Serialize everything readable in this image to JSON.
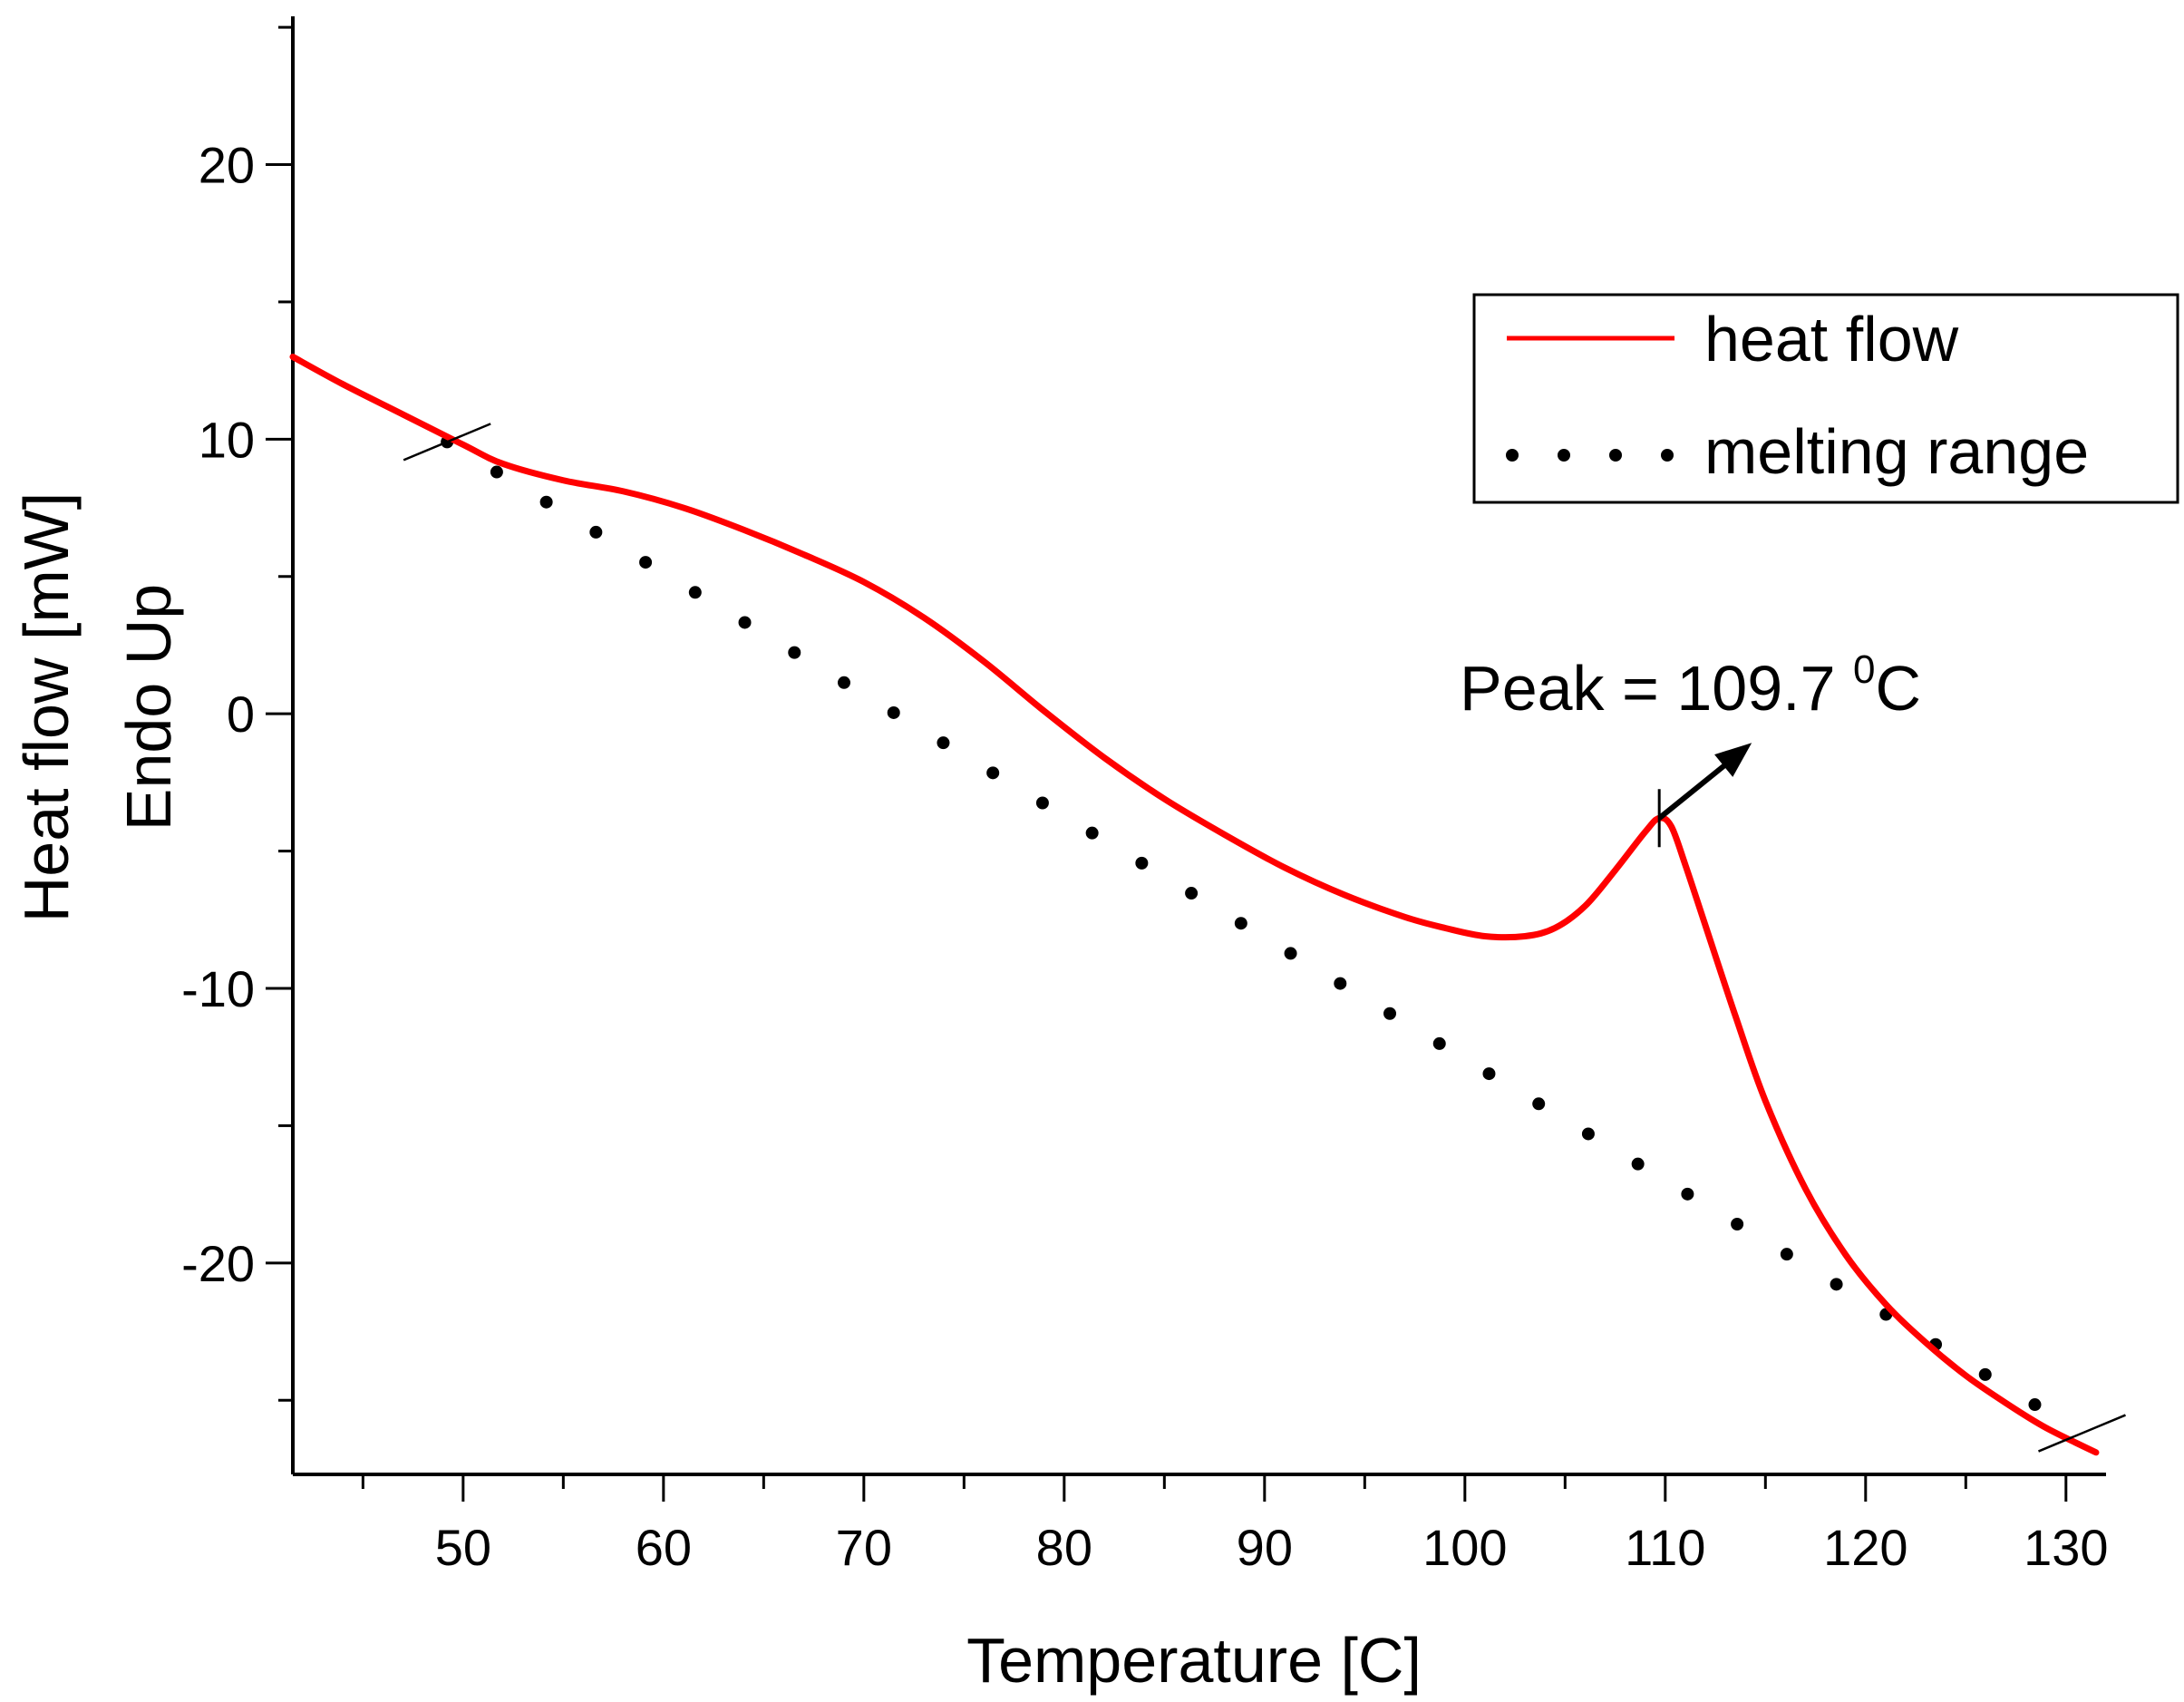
{
  "chart_data": {
    "type": "line",
    "title": "",
    "xlabel": "Temperature [C]",
    "ylabel_line1": "Heat flow [mW]",
    "ylabel_line2": "Endo Up",
    "xlim": [
      41.5,
      132
    ],
    "ylim": [
      -27.7,
      25.4
    ],
    "x_ticks": [
      50,
      60,
      70,
      80,
      90,
      100,
      110,
      120,
      130
    ],
    "x_tick_labels": [
      "50",
      "60",
      "70",
      "80",
      "90",
      "100",
      "110",
      "120",
      "130"
    ],
    "x_minor_ticks": [
      45,
      55,
      65,
      75,
      85,
      95,
      105,
      115,
      125
    ],
    "y_ticks": [
      20,
      10,
      0,
      -10,
      -20
    ],
    "y_tick_labels": [
      "20",
      "10",
      "0",
      "-10",
      "-20"
    ],
    "y_minor_ticks": [
      25,
      15,
      5,
      -5,
      -15,
      -25
    ],
    "series": [
      {
        "name": "heat flow",
        "color": "#ff0000",
        "style": "solid",
        "x": [
          41.5,
          44,
          47,
          50,
          52,
          55,
          58,
          61,
          64,
          67,
          70,
          73,
          76,
          79,
          82,
          85,
          88,
          91,
          94,
          97,
          99,
          101,
          103,
          104.5,
          106,
          107.5,
          109,
          109.7,
          110.3,
          111,
          112,
          113.5,
          115,
          117,
          119,
          121,
          123,
          125,
          127,
          129,
          131.5
        ],
        "y": [
          13.0,
          12.0,
          10.9,
          9.8,
          9.1,
          8.5,
          8.1,
          7.5,
          6.7,
          5.8,
          4.8,
          3.5,
          1.9,
          0.1,
          -1.6,
          -3.1,
          -4.4,
          -5.6,
          -6.6,
          -7.4,
          -7.8,
          -8.1,
          -8.1,
          -7.8,
          -7.0,
          -5.7,
          -4.3,
          -3.8,
          -4.1,
          -5.5,
          -7.7,
          -11.0,
          -14.1,
          -17.3,
          -19.7,
          -21.5,
          -22.9,
          -24.1,
          -25.1,
          -26.0,
          -26.9
        ]
      },
      {
        "name": "melting range",
        "color": "#000000",
        "style": "dotted",
        "x": [
          49.2,
          130.8
        ],
        "y": [
          9.9,
          -26.2
        ]
      }
    ],
    "legend": {
      "position": "top-right",
      "entries": [
        "heat flow",
        "melting range"
      ]
    },
    "annotations": [
      {
        "kind": "peak",
        "x": 109.7,
        "y": -3.8,
        "text_prefix": "Peak = 109.7 ",
        "text_superscript": "0",
        "text_suffix": "C"
      }
    ]
  }
}
